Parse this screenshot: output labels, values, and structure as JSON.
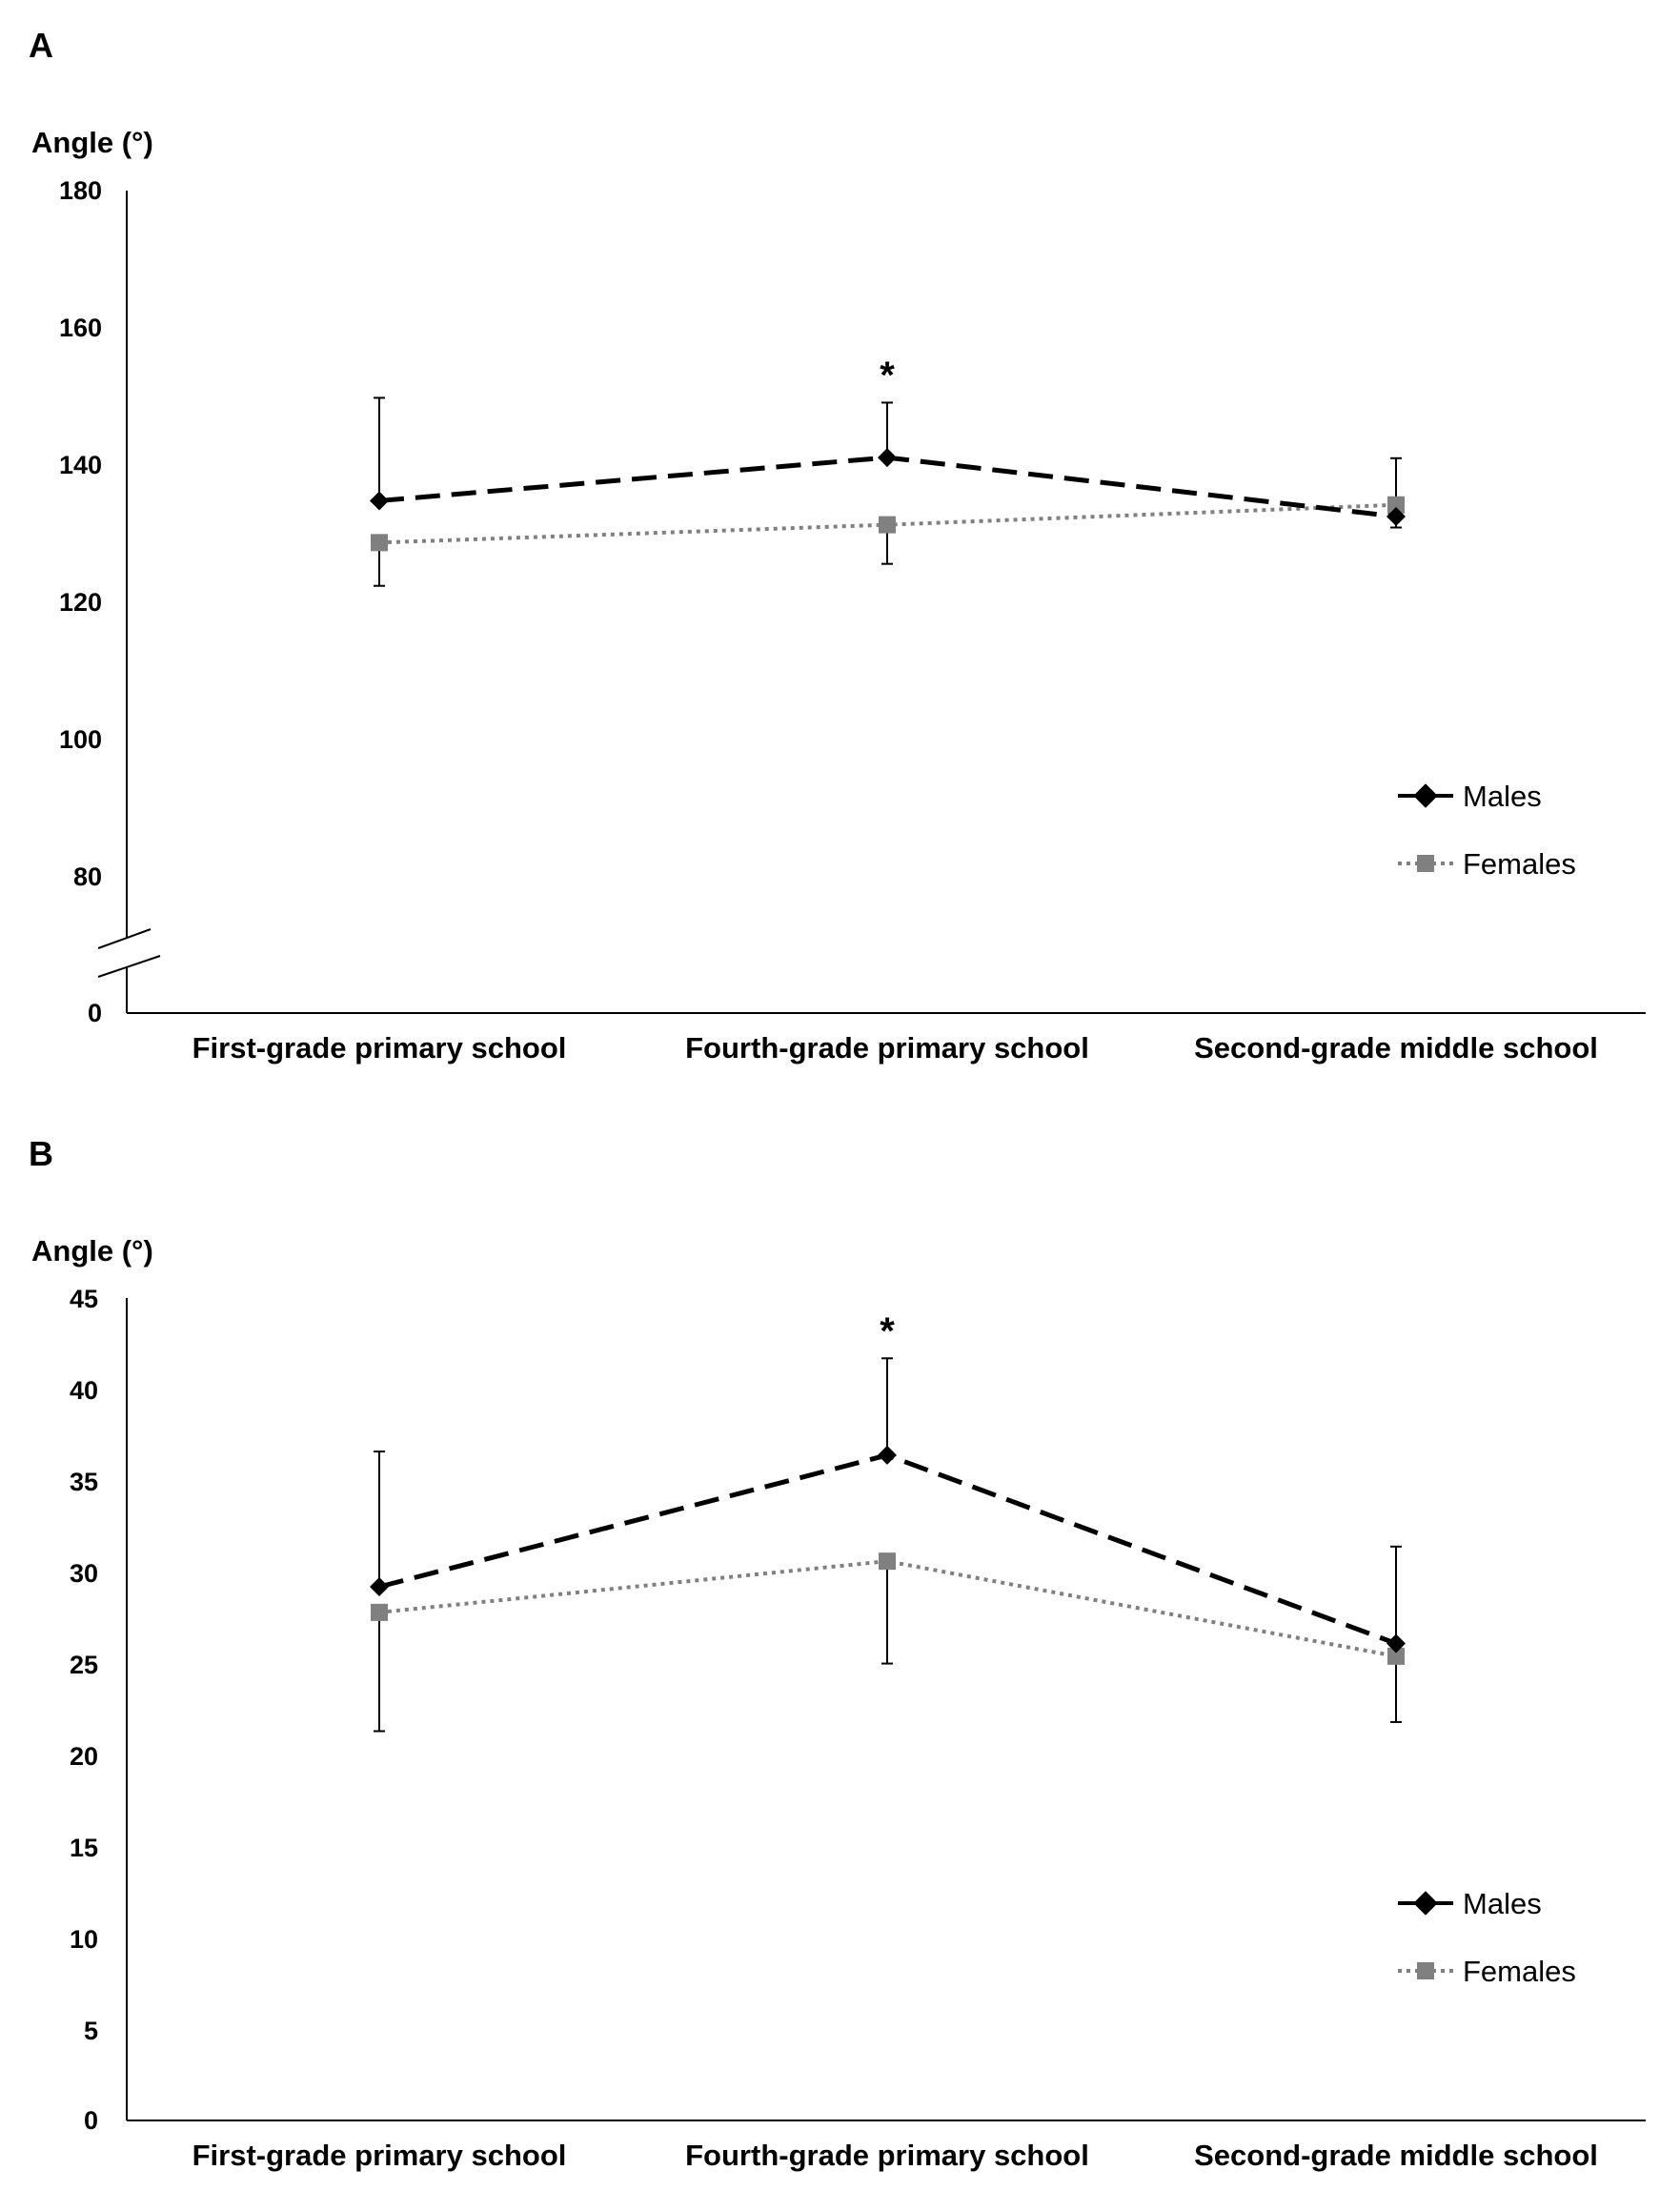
{
  "chart_data": [
    {
      "panel": "A",
      "type": "line",
      "ylabel": "Angle (°)",
      "xlabel": "",
      "ylim": [
        0,
        180
      ],
      "axis_break": true,
      "yticks": [
        "180",
        "160",
        "140",
        "120",
        "100",
        "80",
        "0"
      ],
      "categories": [
        "First-grade primary school",
        "Fourth-grade primary school",
        "Second-grade middle school"
      ],
      "series": [
        {
          "name": "Males",
          "values": [
            134.8,
            141.1,
            132.5
          ],
          "error_up": [
            15.0,
            8.0,
            1.6
          ],
          "error_down": [
            0,
            0,
            1.6
          ],
          "color": "#000000",
          "style": "dashed",
          "marker": "diamond"
        },
        {
          "name": "Females",
          "values": [
            128.7,
            131.3,
            134.2
          ],
          "error_up": [
            0,
            0,
            6.8
          ],
          "error_down": [
            6.3,
            5.7,
            0
          ],
          "color": "#808080",
          "style": "dotted",
          "marker": "square"
        }
      ],
      "annotations": [
        {
          "category": "Fourth-grade primary school",
          "text": "*"
        }
      ],
      "legend": "right"
    },
    {
      "panel": "B",
      "type": "line",
      "ylabel": "Angle (°)",
      "xlabel": "",
      "ylim": [
        0,
        45
      ],
      "yticks": [
        "45",
        "40",
        "35",
        "30",
        "25",
        "20",
        "15",
        "10",
        "5",
        "0"
      ],
      "categories": [
        "First-grade primary school",
        "Fourth-grade primary school",
        "Second-grade middle school"
      ],
      "series": [
        {
          "name": "Males",
          "values": [
            29.2,
            36.4,
            26.1
          ],
          "error_up": [
            7.4,
            5.3,
            5.3
          ],
          "error_down": [
            0,
            0,
            0
          ],
          "color": "#000000",
          "style": "dashed",
          "marker": "diamond"
        },
        {
          "name": "Females",
          "values": [
            27.8,
            30.6,
            25.4
          ],
          "error_up": [
            0,
            0,
            0
          ],
          "error_down": [
            6.5,
            5.6,
            3.6
          ],
          "color": "#808080",
          "style": "dotted",
          "marker": "square"
        }
      ],
      "annotations": [
        {
          "category": "Fourth-grade primary school",
          "text": "*"
        }
      ],
      "legend": "right"
    }
  ]
}
